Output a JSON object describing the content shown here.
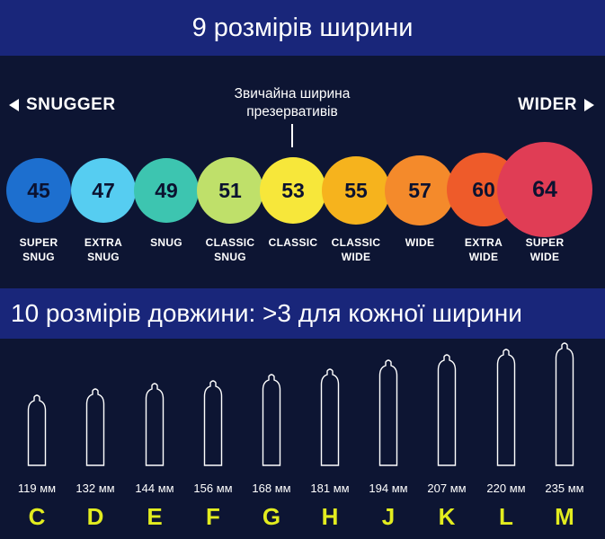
{
  "title_width": "9 розмірів ширини",
  "left_direction": "SNUGGER",
  "right_direction": "WIDER",
  "typical_note": {
    "line1": "Звичайна ширина",
    "line2": "презервативів"
  },
  "widths": [
    {
      "value": "45",
      "line1": "SUPER",
      "line2": "SNUG",
      "color": "#1d6fcf"
    },
    {
      "value": "47",
      "line1": "EXTRA",
      "line2": "SNUG",
      "color": "#56cdf1"
    },
    {
      "value": "49",
      "line1": "SNUG",
      "line2": "",
      "color": "#3dc5b0"
    },
    {
      "value": "51",
      "line1": "CLASSIC",
      "line2": "SNUG",
      "color": "#bfe06a"
    },
    {
      "value": "53",
      "line1": "CLASSIC",
      "line2": "",
      "color": "#f7e73a"
    },
    {
      "value": "55",
      "line1": "CLASSIC",
      "line2": "WIDE",
      "color": "#f6b31d"
    },
    {
      "value": "57",
      "line1": "WIDE",
      "line2": "",
      "color": "#f48a2b"
    },
    {
      "value": "60",
      "line1": "EXTRA",
      "line2": "WIDE",
      "color": "#ee5b2a"
    },
    {
      "value": "64",
      "line1": "SUPER",
      "line2": "WIDE",
      "color": "#e03d55"
    }
  ],
  "title_length": "10 розмірів довжини: >3 для кожної ширини",
  "lengths": [
    {
      "mm": "119 мм",
      "letter": "C"
    },
    {
      "mm": "132 мм",
      "letter": "D"
    },
    {
      "mm": "144 мм",
      "letter": "E"
    },
    {
      "mm": "156 мм",
      "letter": "F"
    },
    {
      "mm": "168 мм",
      "letter": "G"
    },
    {
      "mm": "181 мм",
      "letter": "H"
    },
    {
      "mm": "194 мм",
      "letter": "J"
    },
    {
      "mm": "207 мм",
      "letter": "K"
    },
    {
      "mm": "220 мм",
      "letter": "L"
    },
    {
      "mm": "235 мм",
      "letter": "M"
    }
  ],
  "colors": {
    "background": "#0d1533",
    "banner": "#19267a",
    "letters": "#e2ec1f"
  }
}
